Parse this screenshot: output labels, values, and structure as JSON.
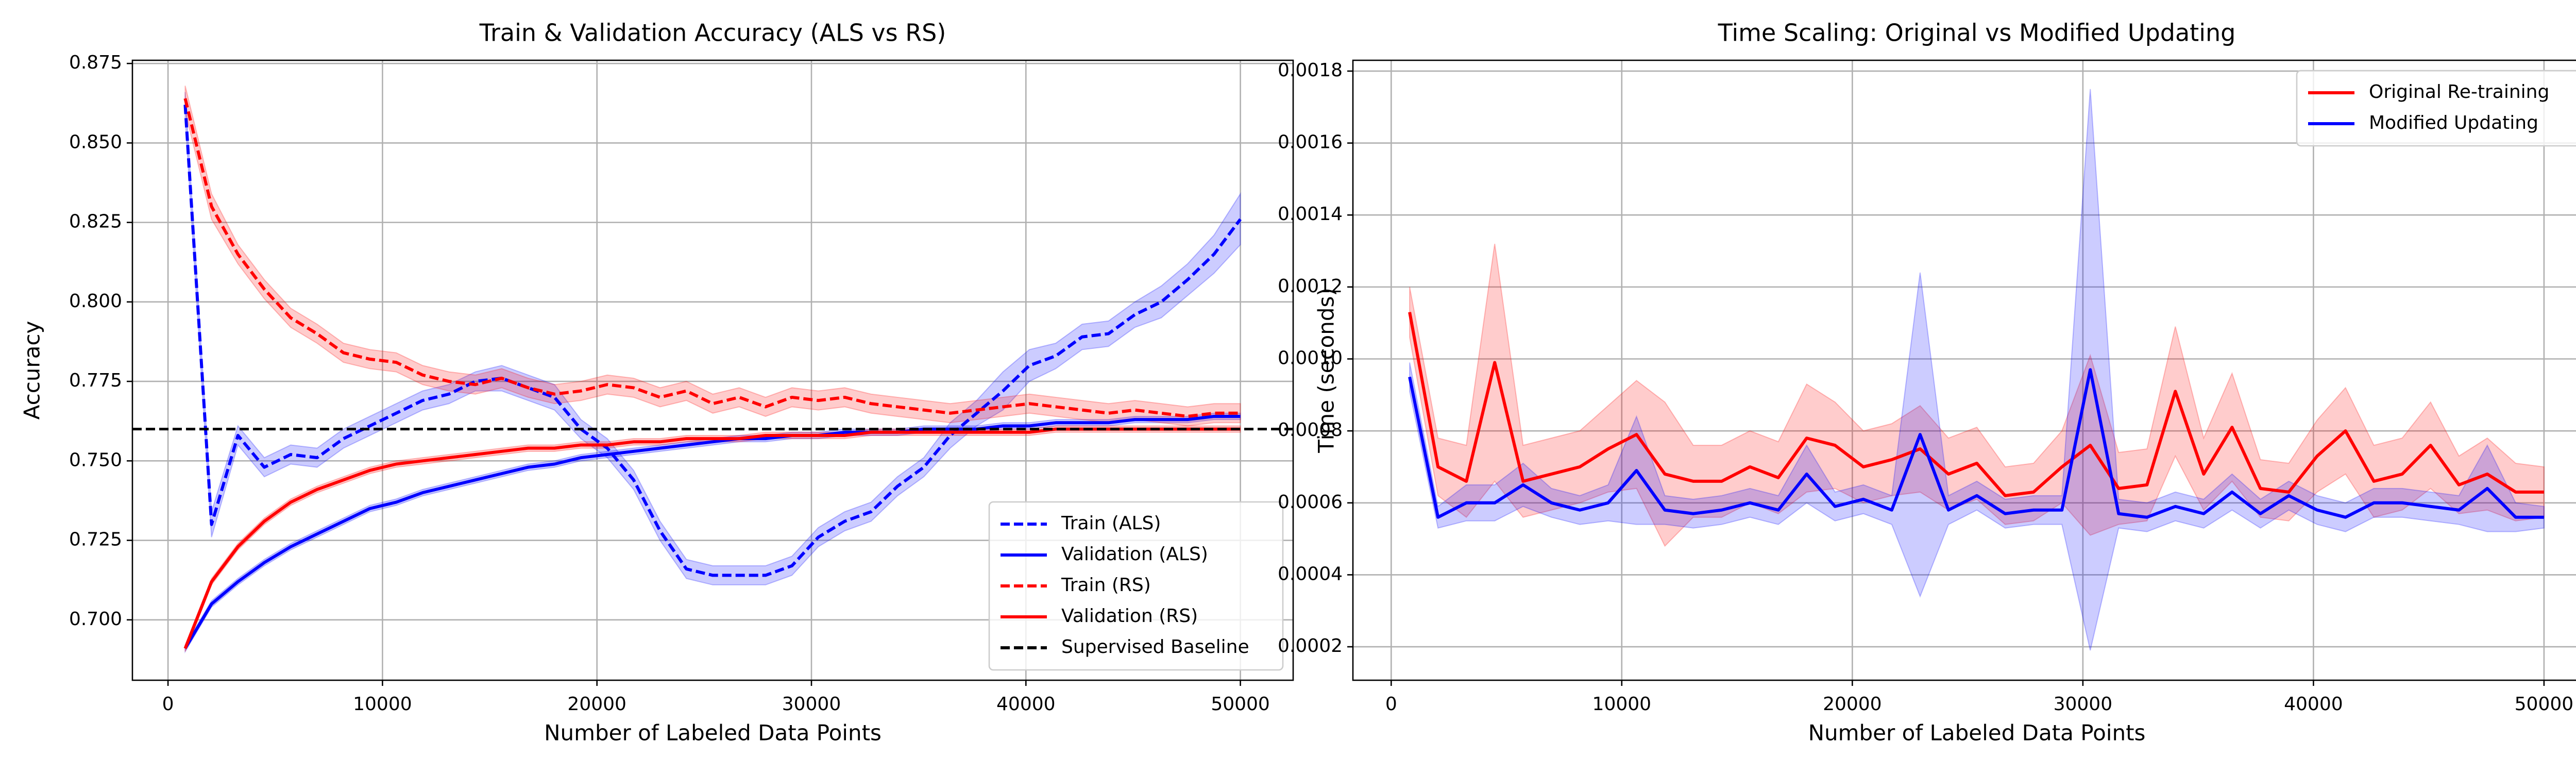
{
  "chart_data": [
    {
      "type": "line",
      "title": "Train & Validation Accuracy (ALS vs RS)",
      "x_label": "Number of Labeled Data Points",
      "y_label": "Accuracy",
      "xlim": [
        -1660,
        52460
      ],
      "ylim": [
        0.681,
        0.876
      ],
      "xticks": [
        0,
        10000,
        20000,
        30000,
        40000,
        50000
      ],
      "yticks": [
        {
          "value": 0.7,
          "label": "0.700"
        },
        0.725,
        {
          "value": 0.75,
          "label": "0.750"
        },
        0.775,
        {
          "value": 0.8,
          "label": "0.800"
        },
        0.825,
        {
          "value": 0.85,
          "label": "0.850"
        },
        0.875
      ],
      "grid": true,
      "legend": "lower right",
      "x": [
        800,
        2030,
        3260,
        4490,
        5720,
        6950,
        8180,
        9410,
        10640,
        11870,
        13100,
        14330,
        15560,
        16790,
        18020,
        19250,
        20480,
        21710,
        22940,
        24170,
        25400,
        26630,
        27860,
        29090,
        30320,
        31550,
        32780,
        34010,
        35240,
        36470,
        37700,
        38930,
        40160,
        41390,
        42620,
        43850,
        45080,
        46310,
        47540,
        48770,
        50000
      ],
      "series": [
        {
          "name": "Train (ALS)",
          "color": "#0000ff",
          "linestyle": "dashed",
          "values": [
            0.862,
            0.73,
            0.758,
            0.748,
            0.752,
            0.751,
            0.757,
            0.761,
            0.765,
            0.769,
            0.771,
            0.775,
            0.776,
            0.773,
            0.77,
            0.76,
            0.754,
            0.744,
            0.728,
            0.716,
            0.714,
            0.714,
            0.714,
            0.717,
            0.726,
            0.731,
            0.734,
            0.742,
            0.748,
            0.758,
            0.765,
            0.772,
            0.78,
            0.783,
            0.789,
            0.79,
            0.796,
            0.8,
            0.807,
            0.815,
            0.826
          ],
          "errors": [
            0.004,
            0.004,
            0.003,
            0.003,
            0.003,
            0.003,
            0.003,
            0.003,
            0.003,
            0.003,
            0.003,
            0.003,
            0.004,
            0.004,
            0.004,
            0.003,
            0.003,
            0.003,
            0.003,
            0.003,
            0.003,
            0.003,
            0.003,
            0.003,
            0.003,
            0.003,
            0.003,
            0.003,
            0.003,
            0.004,
            0.004,
            0.006,
            0.005,
            0.004,
            0.004,
            0.004,
            0.004,
            0.005,
            0.005,
            0.006,
            0.008
          ]
        },
        {
          "name": "Validation (ALS)",
          "color": "#0000ff",
          "linestyle": "solid",
          "values": [
            0.691,
            0.705,
            0.712,
            0.718,
            0.723,
            0.727,
            0.731,
            0.735,
            0.737,
            0.74,
            0.742,
            0.744,
            0.746,
            0.748,
            0.749,
            0.751,
            0.752,
            0.753,
            0.754,
            0.755,
            0.756,
            0.757,
            0.757,
            0.758,
            0.758,
            0.759,
            0.759,
            0.759,
            0.76,
            0.76,
            0.76,
            0.761,
            0.761,
            0.762,
            0.762,
            0.762,
            0.763,
            0.763,
            0.763,
            0.764,
            0.764
          ],
          "errors": [
            0.001,
            0.001,
            0.001,
            0.001,
            0.001,
            0.001,
            0.001,
            0.001,
            0.001,
            0.001,
            0.001,
            0.001,
            0.001,
            0.001,
            0.001,
            0.001,
            0.001,
            0.001,
            0.001,
            0.001,
            0.001,
            0.001,
            0.001,
            0.001,
            0.001,
            0.001,
            0.001,
            0.001,
            0.001,
            0.001,
            0.001,
            0.001,
            0.001,
            0.001,
            0.001,
            0.001,
            0.001,
            0.001,
            0.001,
            0.001,
            0.001
          ]
        },
        {
          "name": "Train (RS)",
          "color": "#ff0000",
          "linestyle": "dashed",
          "values": [
            0.864,
            0.83,
            0.815,
            0.804,
            0.795,
            0.79,
            0.784,
            0.782,
            0.781,
            0.777,
            0.775,
            0.774,
            0.776,
            0.773,
            0.771,
            0.772,
            0.774,
            0.773,
            0.77,
            0.772,
            0.768,
            0.77,
            0.767,
            0.77,
            0.769,
            0.77,
            0.768,
            0.767,
            0.766,
            0.765,
            0.766,
            0.767,
            0.768,
            0.767,
            0.766,
            0.765,
            0.766,
            0.765,
            0.764,
            0.765,
            0.765
          ],
          "errors": [
            0.004,
            0.004,
            0.003,
            0.003,
            0.003,
            0.003,
            0.003,
            0.003,
            0.003,
            0.003,
            0.003,
            0.003,
            0.003,
            0.003,
            0.003,
            0.003,
            0.003,
            0.003,
            0.003,
            0.003,
            0.003,
            0.003,
            0.003,
            0.003,
            0.003,
            0.003,
            0.003,
            0.003,
            0.003,
            0.003,
            0.003,
            0.003,
            0.003,
            0.003,
            0.003,
            0.003,
            0.003,
            0.003,
            0.003,
            0.003,
            0.003
          ]
        },
        {
          "name": "Validation (RS)",
          "color": "#ff0000",
          "linestyle": "solid",
          "values": [
            0.691,
            0.712,
            0.723,
            0.731,
            0.737,
            0.741,
            0.744,
            0.747,
            0.749,
            0.75,
            0.751,
            0.752,
            0.753,
            0.754,
            0.754,
            0.755,
            0.755,
            0.756,
            0.756,
            0.757,
            0.757,
            0.757,
            0.758,
            0.758,
            0.758,
            0.758,
            0.759,
            0.759,
            0.759,
            0.759,
            0.759,
            0.759,
            0.759,
            0.76,
            0.76,
            0.76,
            0.76,
            0.76,
            0.76,
            0.76,
            0.76
          ],
          "errors": [
            0.001,
            0.001,
            0.001,
            0.001,
            0.001,
            0.001,
            0.001,
            0.001,
            0.001,
            0.001,
            0.001,
            0.001,
            0.001,
            0.001,
            0.001,
            0.001,
            0.001,
            0.001,
            0.001,
            0.001,
            0.001,
            0.001,
            0.001,
            0.001,
            0.001,
            0.001,
            0.001,
            0.001,
            0.001,
            0.001,
            0.001,
            0.001,
            0.001,
            0.001,
            0.001,
            0.001,
            0.001,
            0.001,
            0.001,
            0.001,
            0.001
          ]
        }
      ],
      "hline": {
        "name": "Supervised Baseline",
        "value": 0.76,
        "color": "#000000",
        "linestyle": "dashed"
      }
    },
    {
      "type": "line",
      "title": "Time Scaling: Original vs Modified Updating",
      "x_label": "Number of Labeled Data Points",
      "y_label": "Time (seconds)",
      "xlim": [
        -1660,
        52460
      ],
      "ylim": [
        0.000107,
        0.00183
      ],
      "xticks": [
        0,
        10000,
        20000,
        30000,
        40000,
        50000
      ],
      "yticks": [
        0.0002,
        0.0004,
        0.0006,
        0.0008,
        {
          "value": 0.001,
          "label": "0.0010"
        },
        0.0012,
        0.0014,
        0.0016,
        0.0018
      ],
      "grid": true,
      "legend": "upper right",
      "x": [
        800,
        2030,
        3260,
        4490,
        5720,
        6950,
        8180,
        9410,
        10640,
        11870,
        13100,
        14330,
        15560,
        16790,
        18020,
        19250,
        20480,
        21710,
        22940,
        24170,
        25400,
        26630,
        27860,
        29090,
        30320,
        31550,
        32780,
        34010,
        35240,
        36470,
        37700,
        38930,
        40160,
        41390,
        42620,
        43850,
        45080,
        46310,
        47540,
        48770,
        50000
      ],
      "series": [
        {
          "name": "Original Re-training",
          "color": "#ff0000",
          "linestyle": "solid",
          "values": [
            0.00113,
            0.0007,
            0.00066,
            0.00099,
            0.00066,
            0.00068,
            0.0007,
            0.00075,
            0.00079,
            0.00068,
            0.00066,
            0.00066,
            0.0007,
            0.00067,
            0.00078,
            0.00076,
            0.0007,
            0.00072,
            0.00075,
            0.00068,
            0.00071,
            0.00062,
            0.00063,
            0.0007,
            0.00076,
            0.00064,
            0.00065,
            0.00091,
            0.00068,
            0.00081,
            0.00064,
            0.00063,
            0.00073,
            0.0008,
            0.00066,
            0.00068,
            0.00076,
            0.00065,
            0.00068,
            0.00063,
            0.00063
          ],
          "errors": [
            7e-05,
            8e-05,
            0.0001,
            0.00033,
            0.0001,
            0.0001,
            0.0001,
            0.00012,
            0.00015,
            0.0002,
            0.0001,
            0.0001,
            0.0001,
            0.0001,
            0.00015,
            0.00012,
            0.0001,
            0.0001,
            0.00012,
            0.0001,
            0.0001,
            8e-05,
            8e-05,
            0.0001,
            0.00025,
            0.0001,
            0.0001,
            0.00018,
            0.0001,
            0.00015,
            8e-05,
            8e-05,
            0.0001,
            0.00012,
            0.0001,
            0.0001,
            0.00012,
            8e-05,
            0.0001,
            8e-05,
            7e-05
          ]
        },
        {
          "name": "Modified Updating",
          "color": "#0000ff",
          "linestyle": "solid",
          "values": [
            0.00095,
            0.00056,
            0.0006,
            0.0006,
            0.00065,
            0.0006,
            0.00058,
            0.0006,
            0.00069,
            0.00058,
            0.00057,
            0.00058,
            0.0006,
            0.00058,
            0.00068,
            0.00059,
            0.00061,
            0.00058,
            0.00079,
            0.00058,
            0.00062,
            0.00057,
            0.00058,
            0.00058,
            0.00097,
            0.00057,
            0.00056,
            0.00059,
            0.00057,
            0.00063,
            0.00057,
            0.00062,
            0.00058,
            0.00056,
            0.0006,
            0.0006,
            0.00059,
            0.00058,
            0.00064,
            0.00056,
            0.00056
          ],
          "errors": [
            4e-05,
            3e-05,
            5e-05,
            5e-05,
            6e-05,
            4e-05,
            4e-05,
            5e-05,
            0.00015,
            4e-05,
            4e-05,
            4e-05,
            4e-05,
            4e-05,
            8e-05,
            4e-05,
            4e-05,
            4e-05,
            0.00045,
            4e-05,
            4e-05,
            4e-05,
            4e-05,
            4e-05,
            0.00078,
            4e-05,
            4e-05,
            4e-05,
            4e-05,
            5e-05,
            4e-05,
            4e-05,
            4e-05,
            4e-05,
            4e-05,
            4e-05,
            4e-05,
            4e-05,
            0.00012,
            4e-05,
            3e-05
          ]
        }
      ]
    }
  ]
}
